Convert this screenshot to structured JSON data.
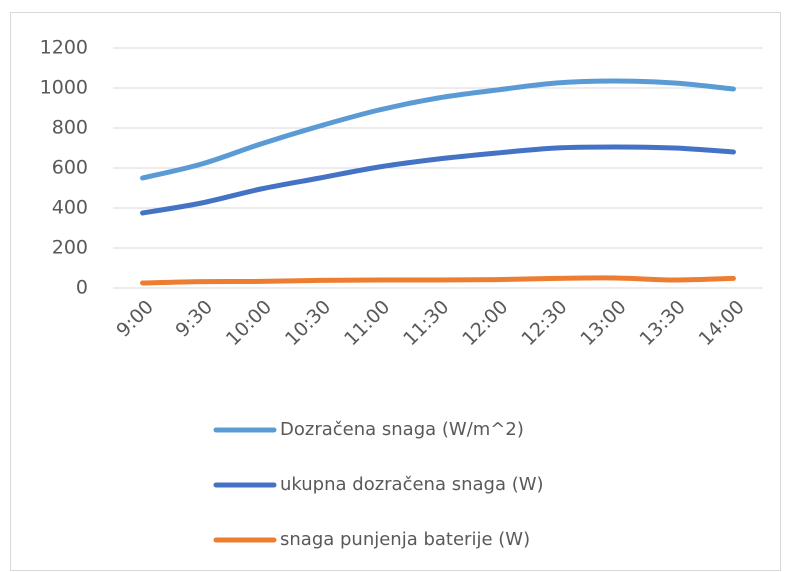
{
  "chart_data": {
    "type": "line",
    "categories": [
      "9:00",
      "9:30",
      "10:00",
      "10:30",
      "11:00",
      "11:30",
      "12:00",
      "12:30",
      "13:00",
      "13:30",
      "14:00"
    ],
    "series": [
      {
        "name": "Dozračena snaga (W/m^2)",
        "color": "#5b9bd5",
        "values": [
          550,
          620,
          720,
          810,
          890,
          950,
          990,
          1025,
          1035,
          1025,
          995
        ]
      },
      {
        "name": "ukupna dozračena snaga (W)",
        "color": "#4472c4",
        "values": [
          375,
          425,
          495,
          550,
          605,
          645,
          675,
          700,
          705,
          700,
          680
        ]
      },
      {
        "name": "snaga punjenja baterije (W)",
        "color": "#ed7d31",
        "values": [
          25,
          32,
          33,
          38,
          40,
          40,
          42,
          48,
          50,
          40,
          48
        ]
      }
    ],
    "ylim": [
      0,
      1200
    ],
    "yticks": [
      0,
      200,
      400,
      600,
      800,
      1000,
      1200
    ],
    "grid": true,
    "legend": "bottom"
  }
}
